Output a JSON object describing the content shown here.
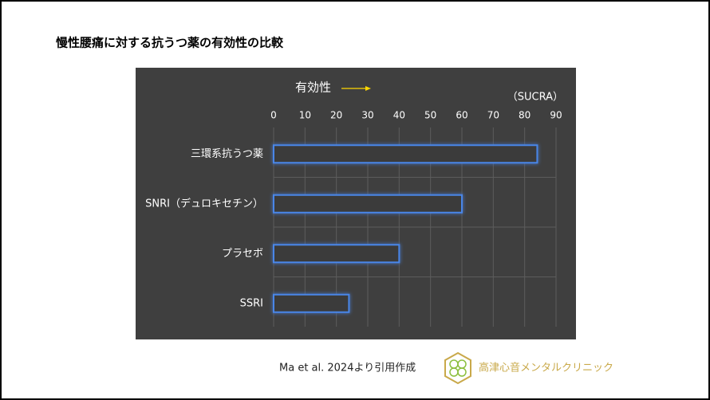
{
  "chart_data": {
    "type": "bar",
    "orientation": "horizontal",
    "title": "慢性腰痛に対する抗うつ薬の有効性の比較",
    "axis_label": "有効性",
    "unit_label": "（SUCRA）",
    "categories": [
      "三環系抗うつ薬",
      "SNRI（デュロキセチン）",
      "プラセボ",
      "SSRI"
    ],
    "values": [
      84,
      60,
      40,
      24
    ],
    "color": "#4a86e8",
    "xlim": [
      0,
      90
    ],
    "xticks": [
      0,
      10,
      20,
      30,
      40,
      50,
      60,
      70,
      80,
      90
    ],
    "grid": true,
    "source": "Ma et al. 2024より引用作成",
    "clinic_name": "高津心音メンタルクリニック"
  }
}
